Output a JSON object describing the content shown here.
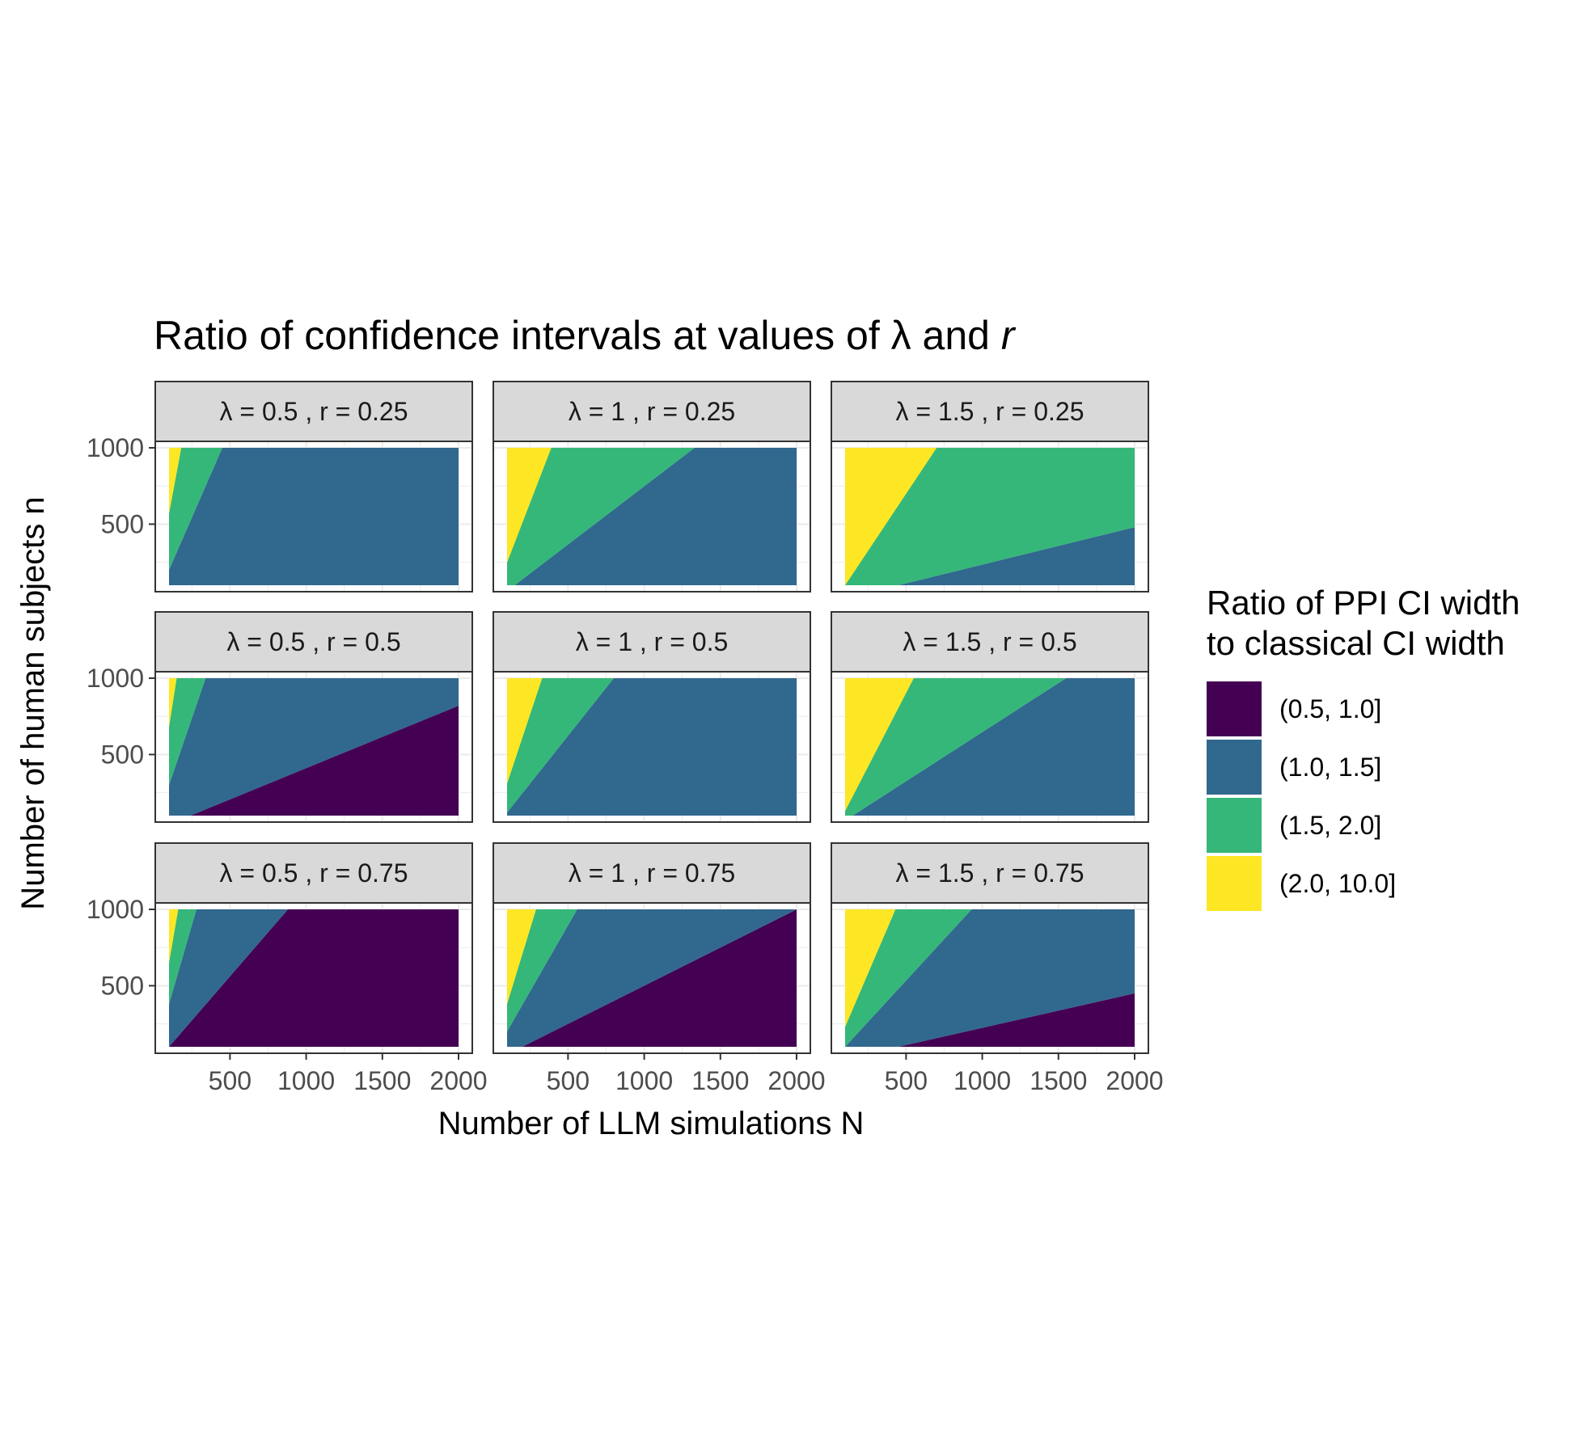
{
  "chart_data": {
    "type": "area",
    "title": "Ratio of confidence intervals at values of λ and r",
    "title_plain": "Ratio of confidence intervals at values of λ and ",
    "title_italic": "r",
    "xlabel": "Number of LLM simulations N",
    "ylabel": "Number of human subjects n",
    "xlim": [
      100,
      2000
    ],
    "ylim": [
      100,
      1000
    ],
    "x_ticks": [
      500,
      1000,
      1500,
      2000
    ],
    "y_ticks": [
      500,
      1000
    ],
    "grid": true,
    "legend": {
      "position": "right",
      "title_lines": [
        "Ratio of PPI CI width",
        "to classical CI width"
      ],
      "items": [
        {
          "label": "(0.5, 1.0]",
          "color": "#440154"
        },
        {
          "label": "(1.0, 1.5]",
          "color": "#31688E"
        },
        {
          "label": "(1.5, 2.0]",
          "color": "#35B779"
        },
        {
          "label": "(2.0, 10.0]",
          "color": "#FDE725"
        }
      ]
    },
    "panels": [
      {
        "label": "λ = 0.5 , r = 0.25",
        "regions": [
          {
            "bin": "(1.0, 1.5]",
            "polygon": [
              [
                100,
                100
              ],
              [
                2000,
                100
              ],
              [
                2000,
                1000
              ],
              [
                450,
                1000
              ],
              [
                100,
                200
              ]
            ]
          },
          {
            "bin": "(1.5, 2.0]",
            "polygon": [
              [
                100,
                200
              ],
              [
                450,
                1000
              ],
              [
                180,
                1000
              ],
              [
                100,
                570
              ]
            ]
          },
          {
            "bin": "(2.0, 10.0]",
            "polygon": [
              [
                100,
                570
              ],
              [
                180,
                1000
              ],
              [
                100,
                1000
              ]
            ]
          }
        ]
      },
      {
        "label": "λ = 1 , r = 0.25",
        "regions": [
          {
            "bin": "(1.0, 1.5]",
            "polygon": [
              [
                150,
                100
              ],
              [
                2000,
                100
              ],
              [
                2000,
                1000
              ],
              [
                1330,
                1000
              ]
            ]
          },
          {
            "bin": "(1.5, 2.0]",
            "polygon": [
              [
                100,
                100
              ],
              [
                150,
                100
              ],
              [
                1330,
                1000
              ],
              [
                390,
                1000
              ],
              [
                100,
                250
              ]
            ]
          },
          {
            "bin": "(2.0, 10.0]",
            "polygon": [
              [
                100,
                250
              ],
              [
                390,
                1000
              ],
              [
                100,
                1000
              ]
            ]
          }
        ]
      },
      {
        "label": "λ = 1.5 , r = 0.25",
        "regions": [
          {
            "bin": "(1.0, 1.5]",
            "polygon": [
              [
                450,
                100
              ],
              [
                2000,
                100
              ],
              [
                2000,
                480
              ]
            ]
          },
          {
            "bin": "(1.5, 2.0]",
            "polygon": [
              [
                100,
                100
              ],
              [
                450,
                100
              ],
              [
                2000,
                480
              ],
              [
                2000,
                1000
              ],
              [
                700,
                1000
              ],
              [
                100,
                100
              ]
            ]
          },
          {
            "bin": "(2.0, 10.0]",
            "polygon": [
              [
                100,
                100
              ],
              [
                700,
                1000
              ],
              [
                100,
                1000
              ]
            ]
          }
        ]
      },
      {
        "label": "λ = 0.5 , r = 0.5",
        "regions": [
          {
            "bin": "(0.5, 1.0]",
            "polygon": [
              [
                240,
                100
              ],
              [
                2000,
                100
              ],
              [
                2000,
                820
              ]
            ]
          },
          {
            "bin": "(1.0, 1.5]",
            "polygon": [
              [
                100,
                100
              ],
              [
                240,
                100
              ],
              [
                2000,
                820
              ],
              [
                2000,
                1000
              ],
              [
                340,
                1000
              ],
              [
                100,
                300
              ]
            ]
          },
          {
            "bin": "(1.5, 2.0]",
            "polygon": [
              [
                100,
                300
              ],
              [
                340,
                1000
              ],
              [
                150,
                1000
              ],
              [
                100,
                680
              ]
            ]
          },
          {
            "bin": "(2.0, 10.0]",
            "polygon": [
              [
                100,
                680
              ],
              [
                150,
                1000
              ],
              [
                100,
                1000
              ]
            ]
          }
        ]
      },
      {
        "label": "λ = 1 , r = 0.5",
        "regions": [
          {
            "bin": "(1.0, 1.5]",
            "polygon": [
              [
                100,
                100
              ],
              [
                2000,
                100
              ],
              [
                2000,
                1000
              ],
              [
                800,
                1000
              ],
              [
                100,
                120
              ]
            ]
          },
          {
            "bin": "(1.5, 2.0]",
            "polygon": [
              [
                100,
                120
              ],
              [
                800,
                1000
              ],
              [
                330,
                1000
              ],
              [
                100,
                310
              ]
            ]
          },
          {
            "bin": "(2.0, 10.0]",
            "polygon": [
              [
                100,
                310
              ],
              [
                330,
                1000
              ],
              [
                100,
                1000
              ]
            ]
          }
        ]
      },
      {
        "label": "λ = 1.5 , r = 0.5",
        "regions": [
          {
            "bin": "(1.0, 1.5]",
            "polygon": [
              [
                150,
                100
              ],
              [
                2000,
                100
              ],
              [
                2000,
                1000
              ],
              [
                1550,
                1000
              ]
            ]
          },
          {
            "bin": "(1.5, 2.0]",
            "polygon": [
              [
                100,
                100
              ],
              [
                150,
                100
              ],
              [
                1550,
                1000
              ],
              [
                550,
                1000
              ],
              [
                100,
                130
              ]
            ]
          },
          {
            "bin": "(2.0, 10.0]",
            "polygon": [
              [
                100,
                130
              ],
              [
                550,
                1000
              ],
              [
                100,
                1000
              ]
            ]
          }
        ]
      },
      {
        "label": "λ = 0.5 , r = 0.75",
        "regions": [
          {
            "bin": "(0.5, 1.0]",
            "polygon": [
              [
                100,
                100
              ],
              [
                2000,
                100
              ],
              [
                2000,
                1000
              ],
              [
                880,
                1000
              ]
            ]
          },
          {
            "bin": "(1.0, 1.5]",
            "polygon": [
              [
                100,
                100
              ],
              [
                880,
                1000
              ],
              [
                280,
                1000
              ],
              [
                100,
                380
              ]
            ]
          },
          {
            "bin": "(1.5, 2.0]",
            "polygon": [
              [
                100,
                380
              ],
              [
                280,
                1000
              ],
              [
                160,
                1000
              ],
              [
                100,
                650
              ]
            ]
          },
          {
            "bin": "(2.0, 10.0]",
            "polygon": [
              [
                100,
                650
              ],
              [
                160,
                1000
              ],
              [
                100,
                1000
              ]
            ]
          }
        ]
      },
      {
        "label": "λ = 1 , r = 0.75",
        "regions": [
          {
            "bin": "(0.5, 1.0]",
            "polygon": [
              [
                200,
                100
              ],
              [
                2000,
                100
              ],
              [
                2000,
                1000
              ]
            ]
          },
          {
            "bin": "(1.0, 1.5]",
            "polygon": [
              [
                100,
                100
              ],
              [
                200,
                100
              ],
              [
                2000,
                1000
              ],
              [
                560,
                1000
              ],
              [
                100,
                200
              ]
            ]
          },
          {
            "bin": "(1.5, 2.0]",
            "polygon": [
              [
                100,
                200
              ],
              [
                560,
                1000
              ],
              [
                290,
                1000
              ],
              [
                100,
                380
              ]
            ]
          },
          {
            "bin": "(2.0, 10.0]",
            "polygon": [
              [
                100,
                380
              ],
              [
                290,
                1000
              ],
              [
                100,
                1000
              ]
            ]
          }
        ]
      },
      {
        "label": "λ = 1.5 , r = 0.75",
        "regions": [
          {
            "bin": "(0.5, 1.0]",
            "polygon": [
              [
                450,
                100
              ],
              [
                2000,
                100
              ],
              [
                2000,
                450
              ]
            ]
          },
          {
            "bin": "(1.0, 1.5]",
            "polygon": [
              [
                100,
                100
              ],
              [
                450,
                100
              ],
              [
                2000,
                450
              ],
              [
                2000,
                1000
              ],
              [
                930,
                1000
              ]
            ]
          },
          {
            "bin": "(1.5, 2.0]",
            "polygon": [
              [
                100,
                100
              ],
              [
                930,
                1000
              ],
              [
                430,
                1000
              ],
              [
                100,
                230
              ]
            ]
          },
          {
            "bin": "(2.0, 10.0]",
            "polygon": [
              [
                100,
                230
              ],
              [
                430,
                1000
              ],
              [
                100,
                1000
              ]
            ]
          }
        ]
      }
    ]
  }
}
